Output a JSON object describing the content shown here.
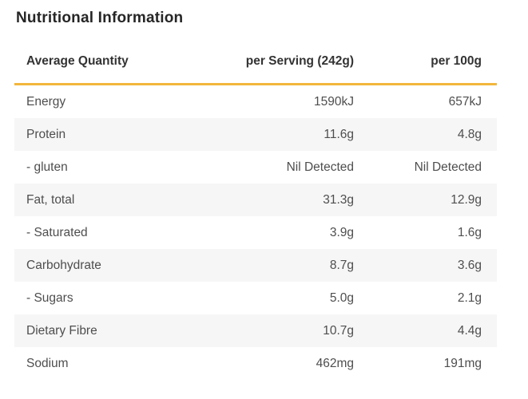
{
  "chart_data": {
    "type": "table",
    "title": "Nutritional Information",
    "columns": [
      "Average Quantity",
      "per Serving (242g)",
      "per 100g"
    ],
    "rows": [
      [
        "Energy",
        "1590kJ",
        "657kJ"
      ],
      [
        "Protein",
        "11.6g",
        "4.8g"
      ],
      [
        "- gluten",
        "Nil Detected",
        "Nil Detected"
      ],
      [
        "Fat, total",
        "31.3g",
        "12.9g"
      ],
      [
        "- Saturated",
        "3.9g",
        "1.6g"
      ],
      [
        "Carbohydrate",
        "8.7g",
        "3.6g"
      ],
      [
        "- Sugars",
        "5.0g",
        "2.1g"
      ],
      [
        "Dietary Fibre",
        "10.7g",
        "4.4g"
      ],
      [
        "Sodium",
        "462mg",
        "191mg"
      ]
    ],
    "layout": {
      "row_striping": "alternate",
      "striped_rows": [
        "Protein",
        "Fat, total",
        "Carbohydrate",
        "Dietary Fibre"
      ],
      "value_alignment": "right",
      "header_rule": "amber underline"
    }
  },
  "colors": {
    "accent_line": "#F2B63C",
    "row_alt_bg": "#F6F6F6",
    "body_text": "#4E4E4E",
    "header_text": "#333333",
    "title_text": "#262626",
    "background": "#FFFFFF"
  }
}
